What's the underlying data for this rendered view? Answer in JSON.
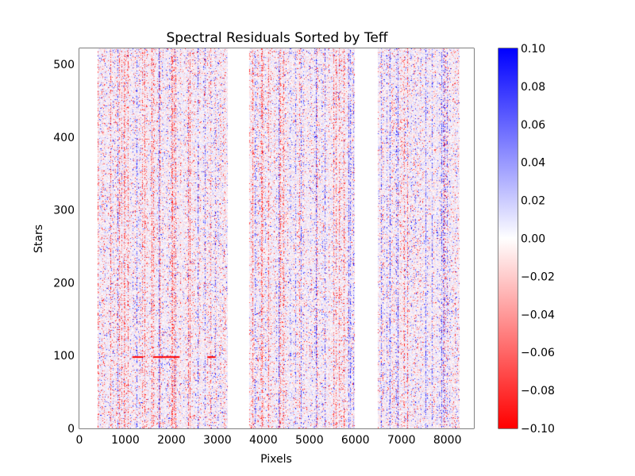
{
  "chart_data": {
    "type": "heatmap",
    "title": "Spectral Residuals Sorted by Teff",
    "xlabel": "Pixels",
    "ylabel": "Stars",
    "xlim": [
      0,
      8575
    ],
    "ylim": [
      0,
      522
    ],
    "xticks": [
      0,
      1000,
      2000,
      3000,
      4000,
      5000,
      6000,
      7000,
      8000
    ],
    "yticks": [
      0,
      100,
      200,
      300,
      400,
      500
    ],
    "data_segments": [
      {
        "start": 390,
        "end": 3230
      },
      {
        "start": 3690,
        "end": 5980
      },
      {
        "start": 6490,
        "end": 8260
      }
    ],
    "colormap": {
      "low": "#ff0000",
      "mid": "#ffffff",
      "high": "#0000ff"
    },
    "colorbar": {
      "vmin": -0.1,
      "vmax": 0.1,
      "ticks": [
        "-0.10",
        "-0.08",
        "-0.06",
        "-0.04",
        "-0.02",
        "0.00",
        "0.02",
        "0.04",
        "0.06",
        "0.08",
        "0.10"
      ]
    },
    "annotations": [
      {
        "row": 98,
        "x_start": 1150,
        "x_end": 1390
      },
      {
        "row": 98,
        "x_start": 1600,
        "x_end": 2180
      },
      {
        "row": 98,
        "x_start": 2780,
        "x_end": 2960
      }
    ],
    "grid": false,
    "n_stars": 522
  }
}
